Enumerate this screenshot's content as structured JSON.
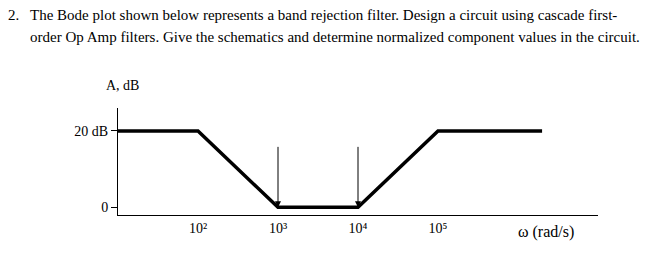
{
  "problem": {
    "number": "2.",
    "lines": [
      "The Bode plot shown below represents a band rejection filter. Design a circuit using cascade first-",
      "order Op Amp filters. Give the schematics and determine normalized component values in the circuit."
    ]
  },
  "chart_data": {
    "type": "line",
    "x": [
      10,
      100,
      1000,
      10000,
      100000,
      2000000
    ],
    "values": [
      20,
      20,
      0,
      0,
      20,
      20
    ],
    "color": "#000000",
    "log": "x",
    "xlim": [
      10,
      10000000
    ],
    "ylim": [
      -2,
      26
    ],
    "xticks": [
      {
        "value": 100,
        "label": "10²"
      },
      {
        "value": 1000,
        "label": "10³"
      },
      {
        "value": 10000,
        "label": "10⁴"
      },
      {
        "value": 100000,
        "label": "10⁵"
      }
    ],
    "yticks": [
      0,
      {
        "value": 20,
        "label": "20 dB"
      }
    ],
    "x_label": "ω (rad/s)",
    "y_label": "A, dB",
    "grid": false
  }
}
